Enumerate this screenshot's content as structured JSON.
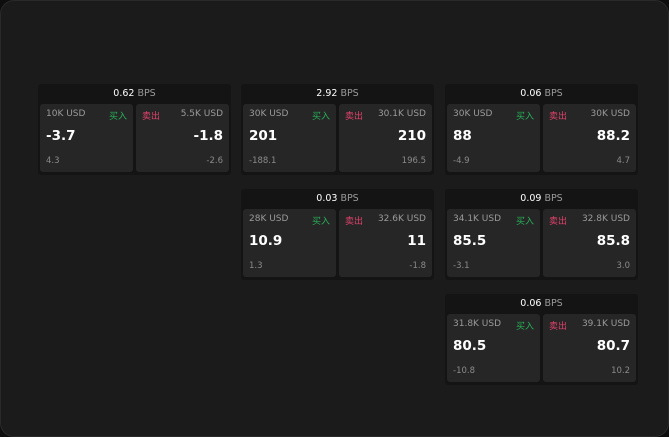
{
  "labels": {
    "buy": "买入",
    "sell": "卖出",
    "unit": "BPS"
  },
  "colors": {
    "buy": "#27b05a",
    "sell": "#e0426c"
  },
  "panels": [
    {
      "spread": "0.62",
      "bid_size": "10K USD",
      "bid": "-3.7",
      "bid_delta": "4.3",
      "ask_size": "5.5K USD",
      "ask": "-1.8",
      "ask_delta": "-2.6"
    },
    {
      "spread": "2.92",
      "bid_size": "30K USD",
      "bid": "201",
      "bid_delta": "-188.1",
      "ask_size": "30.1K USD",
      "ask": "210",
      "ask_delta": "196.5"
    },
    {
      "spread": "0.06",
      "bid_size": "30K USD",
      "bid": "88",
      "bid_delta": "-4.9",
      "ask_size": "30K USD",
      "ask": "88.2",
      "ask_delta": "4.7"
    },
    {
      "spread": "0.03",
      "bid_size": "28K USD",
      "bid": "10.9",
      "bid_delta": "1.3",
      "ask_size": "32.6K USD",
      "ask": "11",
      "ask_delta": "-1.8"
    },
    {
      "spread": "0.09",
      "bid_size": "34.1K USD",
      "bid": "85.5",
      "bid_delta": "-3.1",
      "ask_size": "32.8K USD",
      "ask": "85.8",
      "ask_delta": "3.0"
    },
    {
      "spread": "0.06",
      "bid_size": "31.8K USD",
      "bid": "80.5",
      "bid_delta": "-10.8",
      "ask_size": "39.1K USD",
      "ask": "80.7",
      "ask_delta": "10.2"
    }
  ]
}
